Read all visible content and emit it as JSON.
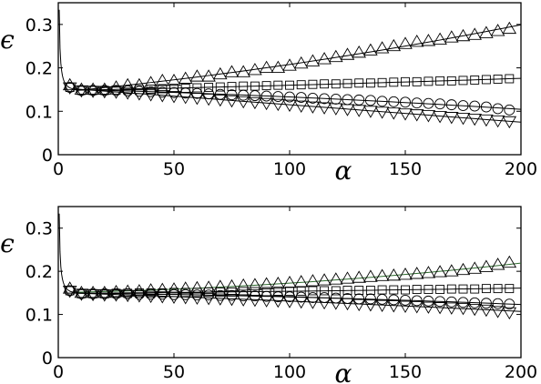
{
  "chart_data": [
    {
      "type": "scatter",
      "panel": "top",
      "title": "",
      "xlabel": "α",
      "ylabel": "ϵ",
      "xlim": [
        0,
        200
      ],
      "ylim": [
        0,
        0.35
      ],
      "xticks": [
        "0",
        "50",
        "100",
        "150",
        "200"
      ],
      "yticks": [
        "0",
        "0.1",
        "0.2",
        "0.3"
      ],
      "grid": false,
      "x": [
        5,
        10,
        15,
        20,
        25,
        30,
        35,
        40,
        45,
        50,
        55,
        60,
        65,
        70,
        75,
        80,
        85,
        90,
        95,
        100,
        105,
        110,
        115,
        120,
        125,
        130,
        135,
        140,
        145,
        150,
        155,
        160,
        165,
        170,
        175,
        180,
        185,
        190,
        195
      ],
      "series": [
        {
          "marker": "triangle-up",
          "values": [
            0.16,
            0.15,
            0.15,
            0.15,
            0.155,
            0.16,
            0.16,
            0.165,
            0.17,
            0.17,
            0.175,
            0.18,
            0.18,
            0.185,
            0.19,
            0.19,
            0.195,
            0.2,
            0.2,
            0.205,
            0.21,
            0.215,
            0.22,
            0.225,
            0.23,
            0.235,
            0.24,
            0.245,
            0.25,
            0.255,
            0.26,
            0.262,
            0.265,
            0.27,
            0.273,
            0.276,
            0.28,
            0.285,
            0.29
          ]
        },
        {
          "marker": "square",
          "values": [
            0.155,
            0.148,
            0.148,
            0.148,
            0.149,
            0.15,
            0.15,
            0.151,
            0.152,
            0.153,
            0.153,
            0.154,
            0.155,
            0.156,
            0.157,
            0.158,
            0.158,
            0.159,
            0.16,
            0.16,
            0.161,
            0.162,
            0.163,
            0.163,
            0.164,
            0.165,
            0.165,
            0.166,
            0.167,
            0.168,
            0.168,
            0.169,
            0.17,
            0.17,
            0.171,
            0.172,
            0.173,
            0.174,
            0.175
          ]
        },
        {
          "marker": "circle",
          "values": [
            0.155,
            0.148,
            0.148,
            0.148,
            0.148,
            0.147,
            0.146,
            0.145,
            0.144,
            0.143,
            0.142,
            0.141,
            0.14,
            0.139,
            0.138,
            0.137,
            0.136,
            0.135,
            0.134,
            0.133,
            0.132,
            0.13,
            0.129,
            0.128,
            0.127,
            0.126,
            0.125,
            0.123,
            0.122,
            0.121,
            0.119,
            0.118,
            0.117,
            0.115,
            0.113,
            0.112,
            0.11,
            0.106,
            0.103
          ]
        },
        {
          "marker": "triangle-down",
          "values": [
            0.155,
            0.148,
            0.147,
            0.146,
            0.145,
            0.143,
            0.141,
            0.139,
            0.137,
            0.135,
            0.133,
            0.131,
            0.129,
            0.127,
            0.125,
            0.123,
            0.121,
            0.119,
            0.117,
            0.115,
            0.113,
            0.111,
            0.109,
            0.107,
            0.105,
            0.103,
            0.101,
            0.099,
            0.097,
            0.095,
            0.093,
            0.091,
            0.089,
            0.087,
            0.085,
            0.083,
            0.081,
            0.079,
            0.077
          ]
        }
      ]
    },
    {
      "type": "scatter",
      "panel": "bottom",
      "title": "",
      "xlabel": "α",
      "ylabel": "ϵ",
      "xlim": [
        0,
        200
      ],
      "ylim": [
        0,
        0.35
      ],
      "xticks": [
        "0",
        "50",
        "100",
        "150",
        "200"
      ],
      "yticks": [
        "0",
        "0.1",
        "0.2",
        "0.3"
      ],
      "grid": false,
      "x": [
        5,
        10,
        15,
        20,
        25,
        30,
        35,
        40,
        45,
        50,
        55,
        60,
        65,
        70,
        75,
        80,
        85,
        90,
        95,
        100,
        105,
        110,
        115,
        120,
        125,
        130,
        135,
        140,
        145,
        150,
        155,
        160,
        165,
        170,
        175,
        180,
        185,
        190,
        195
      ],
      "series": [
        {
          "marker": "triangle-up",
          "values": [
            0.16,
            0.15,
            0.15,
            0.15,
            0.152,
            0.153,
            0.154,
            0.156,
            0.157,
            0.158,
            0.16,
            0.161,
            0.162,
            0.164,
            0.165,
            0.167,
            0.168,
            0.17,
            0.171,
            0.173,
            0.175,
            0.177,
            0.179,
            0.181,
            0.183,
            0.185,
            0.187,
            0.189,
            0.19,
            0.192,
            0.194,
            0.196,
            0.198,
            0.2,
            0.203,
            0.206,
            0.21,
            0.215,
            0.22
          ]
        },
        {
          "marker": "square",
          "values": [
            0.155,
            0.148,
            0.148,
            0.148,
            0.149,
            0.149,
            0.15,
            0.15,
            0.15,
            0.151,
            0.151,
            0.151,
            0.152,
            0.152,
            0.152,
            0.153,
            0.153,
            0.153,
            0.154,
            0.154,
            0.154,
            0.155,
            0.155,
            0.155,
            0.156,
            0.156,
            0.156,
            0.157,
            0.157,
            0.157,
            0.158,
            0.158,
            0.158,
            0.159,
            0.159,
            0.159,
            0.16,
            0.16,
            0.16
          ]
        },
        {
          "marker": "circle",
          "values": [
            0.155,
            0.148,
            0.148,
            0.148,
            0.148,
            0.148,
            0.147,
            0.147,
            0.147,
            0.146,
            0.146,
            0.145,
            0.145,
            0.144,
            0.144,
            0.143,
            0.143,
            0.142,
            0.141,
            0.141,
            0.14,
            0.139,
            0.139,
            0.138,
            0.137,
            0.136,
            0.136,
            0.135,
            0.134,
            0.133,
            0.132,
            0.131,
            0.13,
            0.129,
            0.128,
            0.127,
            0.126,
            0.125,
            0.124
          ]
        },
        {
          "marker": "triangle-down",
          "values": [
            0.155,
            0.148,
            0.147,
            0.146,
            0.146,
            0.145,
            0.144,
            0.143,
            0.142,
            0.141,
            0.14,
            0.139,
            0.138,
            0.137,
            0.136,
            0.135,
            0.134,
            0.133,
            0.132,
            0.131,
            0.13,
            0.129,
            0.128,
            0.127,
            0.126,
            0.124,
            0.123,
            0.122,
            0.121,
            0.12,
            0.119,
            0.118,
            0.117,
            0.116,
            0.115,
            0.113,
            0.111,
            0.108,
            0.105
          ]
        }
      ]
    }
  ]
}
